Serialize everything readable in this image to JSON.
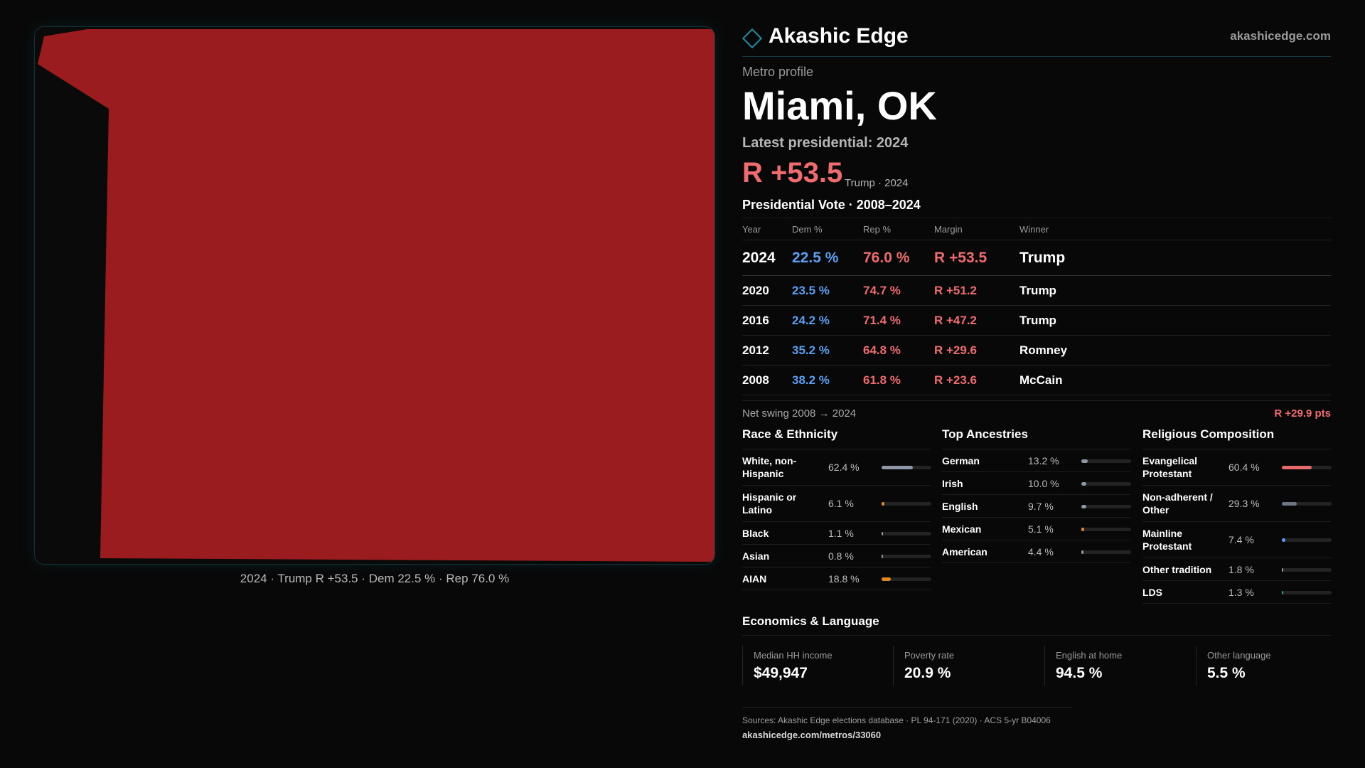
{
  "brand": {
    "name": "Akashic Edge",
    "domain": "akashicedge.com",
    "logo_icon": "diamond-outline",
    "accent": "#1f8fa3"
  },
  "map": {
    "fill_color": "#9b1c1f",
    "caption": "2024 · Trump R +53.5 · Dem 22.5 % · Rep 76.0 %"
  },
  "header": {
    "kicker": "Metro profile",
    "city": "Miami, OK",
    "latest": "Latest presidential: 2024",
    "margin": "R +53.5",
    "margin_note": "Trump · 2024"
  },
  "vote_table": {
    "title": "Presidential Vote · 2008–2024",
    "columns": [
      "Year",
      "Dem %",
      "Rep %",
      "Margin",
      "Winner"
    ],
    "rows": [
      {
        "year": "2024",
        "dem": "22.5 %",
        "rep": "76.0 %",
        "margin": "R +53.5",
        "winner": "Trump"
      },
      {
        "year": "2020",
        "dem": "23.5 %",
        "rep": "74.7 %",
        "margin": "R +51.2",
        "winner": "Trump"
      },
      {
        "year": "2016",
        "dem": "24.2 %",
        "rep": "71.4 %",
        "margin": "R +47.2",
        "winner": "Trump"
      },
      {
        "year": "2012",
        "dem": "35.2 %",
        "rep": "64.8 %",
        "margin": "R +29.6",
        "winner": "Romney"
      },
      {
        "year": "2008",
        "dem": "38.2 %",
        "rep": "61.8 %",
        "margin": "R +23.6",
        "winner": "McCain"
      }
    ]
  },
  "swing": {
    "label": "Net swing 2008 → 2024",
    "value": "R +29.9 pts"
  },
  "race": {
    "title": "Race & Ethnicity",
    "items": [
      {
        "label": "White, non-Hispanic",
        "value": "62.4 %",
        "share": 62.4,
        "color": "#8e98a8"
      },
      {
        "label": "Hispanic or Latino",
        "value": "6.1 %",
        "share": 6.1,
        "color": "#e08a1e"
      },
      {
        "label": "Black",
        "value": "1.1 %",
        "share": 1.1,
        "color": "#9a9a9a"
      },
      {
        "label": "Asian",
        "value": "0.8 %",
        "share": 0.8,
        "color": "#9a9a9a"
      },
      {
        "label": "AIAN",
        "value": "18.8 %",
        "share": 18.8,
        "color": "#e08a1e"
      }
    ]
  },
  "ancestry": {
    "title": "Top Ancestries",
    "items": [
      {
        "label": "German",
        "value": "13.2 %",
        "share": 13.2,
        "color": "#8e98a8"
      },
      {
        "label": "Irish",
        "value": "10.0 %",
        "share": 10.0,
        "color": "#8e98a8"
      },
      {
        "label": "English",
        "value": "9.7 %",
        "share": 9.7,
        "color": "#8e98a8"
      },
      {
        "label": "Mexican",
        "value": "5.1 %",
        "share": 5.1,
        "color": "#e08a1e"
      },
      {
        "label": "American",
        "value": "4.4 %",
        "share": 4.4,
        "color": "#8e98a8"
      }
    ]
  },
  "religion": {
    "title": "Religious Composition",
    "items": [
      {
        "label": "Evangelical Protestant",
        "value": "60.4 %",
        "share": 60.4,
        "color": "#e86a6d"
      },
      {
        "label": "Non-adherent / Other",
        "value": "29.3 %",
        "share": 29.3,
        "color": "#6e7686"
      },
      {
        "label": "Mainline Protestant",
        "value": "7.4 %",
        "share": 7.4,
        "color": "#5c9ff1"
      },
      {
        "label": "Other tradition",
        "value": "1.8 %",
        "share": 1.8,
        "color": "#8e98a8"
      },
      {
        "label": "LDS",
        "value": "1.3 %",
        "share": 1.3,
        "color": "#2aa18a"
      }
    ]
  },
  "economics": {
    "title": "Economics & Language",
    "stats": [
      {
        "label": "Median HH income",
        "value": "$49,947"
      },
      {
        "label": "Poverty rate",
        "value": "20.9 %"
      },
      {
        "label": "English at home",
        "value": "94.5 %"
      },
      {
        "label": "Other language",
        "value": "5.5 %"
      }
    ]
  },
  "footer": {
    "sources": "Sources: Akashic Edge elections database · PL 94-171 (2020) · ACS 5-yr B04006",
    "url": "akashicedge.com/metros/33060"
  }
}
